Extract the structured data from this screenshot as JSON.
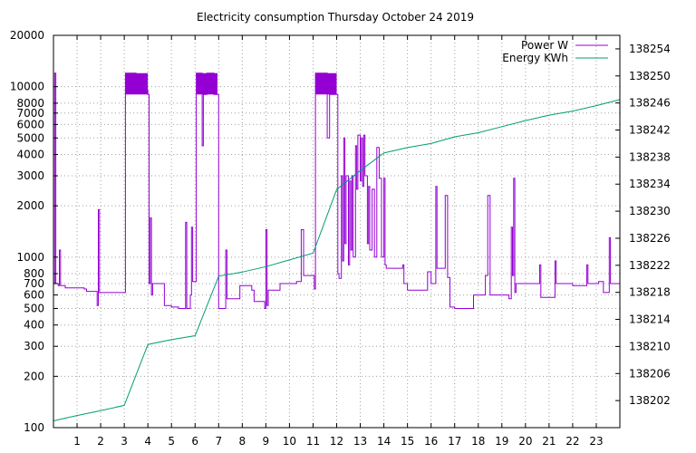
{
  "chart_data": {
    "type": "line",
    "title": "Electricity consumption Thursday October 24 2019",
    "x_ticks": [
      "1",
      "2",
      "3",
      "4",
      "5",
      "6",
      "7",
      "8",
      "9",
      "10",
      "11",
      "12",
      "13",
      "14",
      "15",
      "16",
      "17",
      "18",
      "19",
      "20",
      "21",
      "22",
      "23"
    ],
    "xlim": [
      0,
      24
    ],
    "y_left": {
      "scale": "log",
      "lim": [
        100,
        20000
      ],
      "ticks": [
        "100",
        "200",
        "300",
        "400",
        "500",
        "600",
        "700",
        "800",
        "1000",
        "2000",
        "3000",
        "4000",
        "5000",
        "6000",
        "7000",
        "8000",
        "10000",
        "20000"
      ]
    },
    "y_right": {
      "scale": "linear",
      "lim": [
        138198,
        138256
      ],
      "ticks": [
        "138202",
        "138206",
        "138210",
        "138214",
        "138218",
        "138222",
        "138226",
        "138230",
        "138234",
        "138238",
        "138242",
        "138246",
        "138250",
        "138254"
      ]
    },
    "grid": true,
    "legend_position": "top-right",
    "series": [
      {
        "name": "Power W",
        "axis": "left",
        "color": "#9400d3",
        "points": [
          [
            0.0,
            700
          ],
          [
            0.05,
            12000
          ],
          [
            0.1,
            700
          ],
          [
            0.2,
            680
          ],
          [
            0.25,
            1100
          ],
          [
            0.3,
            680
          ],
          [
            0.5,
            660
          ],
          [
            1.0,
            660
          ],
          [
            1.3,
            650
          ],
          [
            1.4,
            630
          ],
          [
            1.8,
            630
          ],
          [
            1.85,
            520
          ],
          [
            1.9,
            1900
          ],
          [
            1.95,
            620
          ],
          [
            2.5,
            620
          ],
          [
            3.0,
            620
          ],
          [
            3.05,
            9000
          ],
          [
            3.05,
            12000
          ],
          [
            3.5,
            9500
          ],
          [
            4.0,
            9000
          ],
          [
            4.05,
            700
          ],
          [
            4.1,
            1700
          ],
          [
            4.15,
            600
          ],
          [
            4.2,
            700
          ],
          [
            4.5,
            700
          ],
          [
            4.7,
            520
          ],
          [
            5.0,
            510
          ],
          [
            5.3,
            500
          ],
          [
            5.5,
            500
          ],
          [
            5.6,
            1600
          ],
          [
            5.65,
            500
          ],
          [
            5.8,
            600
          ],
          [
            5.85,
            1500
          ],
          [
            5.9,
            720
          ],
          [
            6.0,
            720
          ],
          [
            6.05,
            9000
          ],
          [
            6.05,
            12000
          ],
          [
            6.3,
            4500
          ],
          [
            6.35,
            9000
          ],
          [
            6.5,
            12000
          ],
          [
            6.8,
            9000
          ],
          [
            6.95,
            9000
          ],
          [
            7.0,
            500
          ],
          [
            7.2,
            500
          ],
          [
            7.3,
            1100
          ],
          [
            7.35,
            570
          ],
          [
            7.8,
            570
          ],
          [
            7.9,
            680
          ],
          [
            8.2,
            680
          ],
          [
            8.4,
            640
          ],
          [
            8.5,
            550
          ],
          [
            8.9,
            550
          ],
          [
            8.95,
            500
          ],
          [
            9.0,
            1450
          ],
          [
            9.05,
            520
          ],
          [
            9.1,
            640
          ],
          [
            9.5,
            640
          ],
          [
            9.6,
            700
          ],
          [
            10.0,
            700
          ],
          [
            10.2,
            700
          ],
          [
            10.3,
            720
          ],
          [
            10.5,
            1450
          ],
          [
            10.6,
            780
          ],
          [
            11.0,
            780
          ],
          [
            11.05,
            650
          ],
          [
            11.1,
            9000
          ],
          [
            11.1,
            12000
          ],
          [
            11.6,
            5000
          ],
          [
            11.7,
            9000
          ],
          [
            12.0,
            9000
          ],
          [
            12.05,
            800
          ],
          [
            12.1,
            750
          ],
          [
            12.2,
            3000
          ],
          [
            12.25,
            950
          ],
          [
            12.3,
            5000
          ],
          [
            12.35,
            1200
          ],
          [
            12.4,
            3000
          ],
          [
            12.5,
            900
          ],
          [
            12.55,
            2800
          ],
          [
            12.6,
            1100
          ],
          [
            12.65,
            3000
          ],
          [
            12.7,
            1000
          ],
          [
            12.8,
            4500
          ],
          [
            12.85,
            2500
          ],
          [
            12.9,
            5200
          ],
          [
            13.0,
            2800
          ],
          [
            13.05,
            5000
          ],
          [
            13.1,
            2600
          ],
          [
            13.15,
            5200
          ],
          [
            13.2,
            3000
          ],
          [
            13.3,
            1200
          ],
          [
            13.35,
            2600
          ],
          [
            13.4,
            1100
          ],
          [
            13.5,
            2500
          ],
          [
            13.6,
            1000
          ],
          [
            13.7,
            4400
          ],
          [
            13.8,
            2900
          ],
          [
            13.9,
            1000
          ],
          [
            14.0,
            2900
          ],
          [
            14.05,
            900
          ],
          [
            14.1,
            860
          ],
          [
            14.5,
            860
          ],
          [
            14.8,
            900
          ],
          [
            14.85,
            700
          ],
          [
            15.0,
            640
          ],
          [
            15.5,
            640
          ],
          [
            15.8,
            640
          ],
          [
            15.85,
            820
          ],
          [
            16.0,
            700
          ],
          [
            16.2,
            2600
          ],
          [
            16.25,
            860
          ],
          [
            16.5,
            860
          ],
          [
            16.6,
            2300
          ],
          [
            16.7,
            760
          ],
          [
            16.8,
            510
          ],
          [
            17.0,
            500
          ],
          [
            17.5,
            500
          ],
          [
            17.8,
            600
          ],
          [
            18.2,
            600
          ],
          [
            18.3,
            780
          ],
          [
            18.4,
            2300
          ],
          [
            18.5,
            600
          ],
          [
            19.0,
            600
          ],
          [
            19.3,
            570
          ],
          [
            19.4,
            1500
          ],
          [
            19.45,
            780
          ],
          [
            19.5,
            2900
          ],
          [
            19.55,
            620
          ],
          [
            19.6,
            700
          ],
          [
            20.0,
            700
          ],
          [
            20.5,
            700
          ],
          [
            20.6,
            900
          ],
          [
            20.65,
            580
          ],
          [
            21.0,
            580
          ],
          [
            21.2,
            580
          ],
          [
            21.25,
            950
          ],
          [
            21.3,
            700
          ],
          [
            21.5,
            700
          ],
          [
            22.0,
            680
          ],
          [
            22.5,
            680
          ],
          [
            22.6,
            900
          ],
          [
            22.65,
            700
          ],
          [
            23.0,
            700
          ],
          [
            23.1,
            720
          ],
          [
            23.3,
            620
          ],
          [
            23.5,
            620
          ],
          [
            23.55,
            1300
          ],
          [
            23.6,
            700
          ],
          [
            24.0,
            700
          ]
        ]
      },
      {
        "name": "Energy KWh",
        "axis": "right",
        "color": "#009e73",
        "points": [
          [
            0,
            138199.0
          ],
          [
            1,
            138199.8
          ],
          [
            2,
            138200.5
          ],
          [
            3,
            138201.3
          ],
          [
            4,
            138210.3
          ],
          [
            5,
            138211.0
          ],
          [
            6,
            138211.6
          ],
          [
            7,
            138220.4
          ],
          [
            8,
            138221.0
          ],
          [
            9,
            138221.8
          ],
          [
            10,
            138222.8
          ],
          [
            11,
            138223.8
          ],
          [
            12,
            138233.2
          ],
          [
            13,
            138236.0
          ],
          [
            14,
            138238.6
          ],
          [
            15,
            138239.4
          ],
          [
            16,
            138240.0
          ],
          [
            17,
            138241.0
          ],
          [
            18,
            138241.6
          ],
          [
            19,
            138242.5
          ],
          [
            20,
            138243.4
          ],
          [
            21,
            138244.2
          ],
          [
            22,
            138244.8
          ],
          [
            23,
            138245.6
          ],
          [
            24,
            138246.5
          ]
        ]
      }
    ]
  }
}
